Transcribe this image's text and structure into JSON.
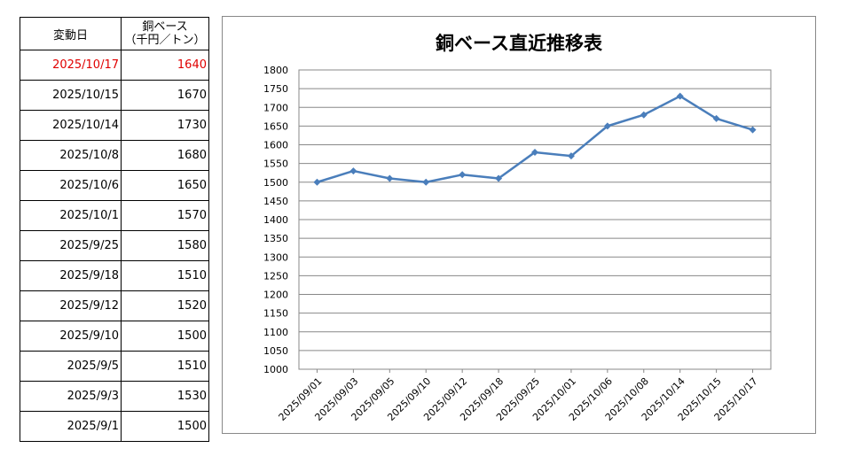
{
  "table": {
    "header_date": "変動日",
    "header_price_line1": "銅ベース",
    "header_price_line2": "（千円／トン）",
    "rows": [
      {
        "date": "2025/10/17",
        "price": "1640"
      },
      {
        "date": "2025/10/15",
        "price": "1670"
      },
      {
        "date": "2025/10/14",
        "price": "1730"
      },
      {
        "date": "2025/10/8",
        "price": "1680"
      },
      {
        "date": "2025/10/6",
        "price": "1650"
      },
      {
        "date": "2025/10/1",
        "price": "1570"
      },
      {
        "date": "2025/9/25",
        "price": "1580"
      },
      {
        "date": "2025/9/18",
        "price": "1510"
      },
      {
        "date": "2025/9/12",
        "price": "1520"
      },
      {
        "date": "2025/9/10",
        "price": "1500"
      },
      {
        "date": "2025/9/5",
        "price": "1510"
      },
      {
        "date": "2025/9/3",
        "price": "1530"
      },
      {
        "date": "2025/9/1",
        "price": "1500"
      }
    ]
  },
  "chart_data": {
    "type": "line",
    "title": "銅ベース直近推移表",
    "xlabel": "",
    "ylabel": "",
    "categories": [
      "2025/09/01",
      "2025/09/03",
      "2025/09/05",
      "2025/09/10",
      "2025/09/12",
      "2025/09/18",
      "2025/09/25",
      "2025/10/01",
      "2025/10/06",
      "2025/10/08",
      "2025/10/14",
      "2025/10/15",
      "2025/10/17"
    ],
    "series": [
      {
        "values": [
          1500,
          1530,
          1510,
          1500,
          1520,
          1510,
          1580,
          1570,
          1650,
          1680,
          1730,
          1670,
          1640
        ],
        "color": "#4a7ebb"
      }
    ],
    "ylim": [
      1000,
      1800
    ],
    "ytick_step": 50,
    "grid": true,
    "legend": "none"
  },
  "colors": {
    "latest_row": "#e00000",
    "line": "#4a7ebb"
  }
}
